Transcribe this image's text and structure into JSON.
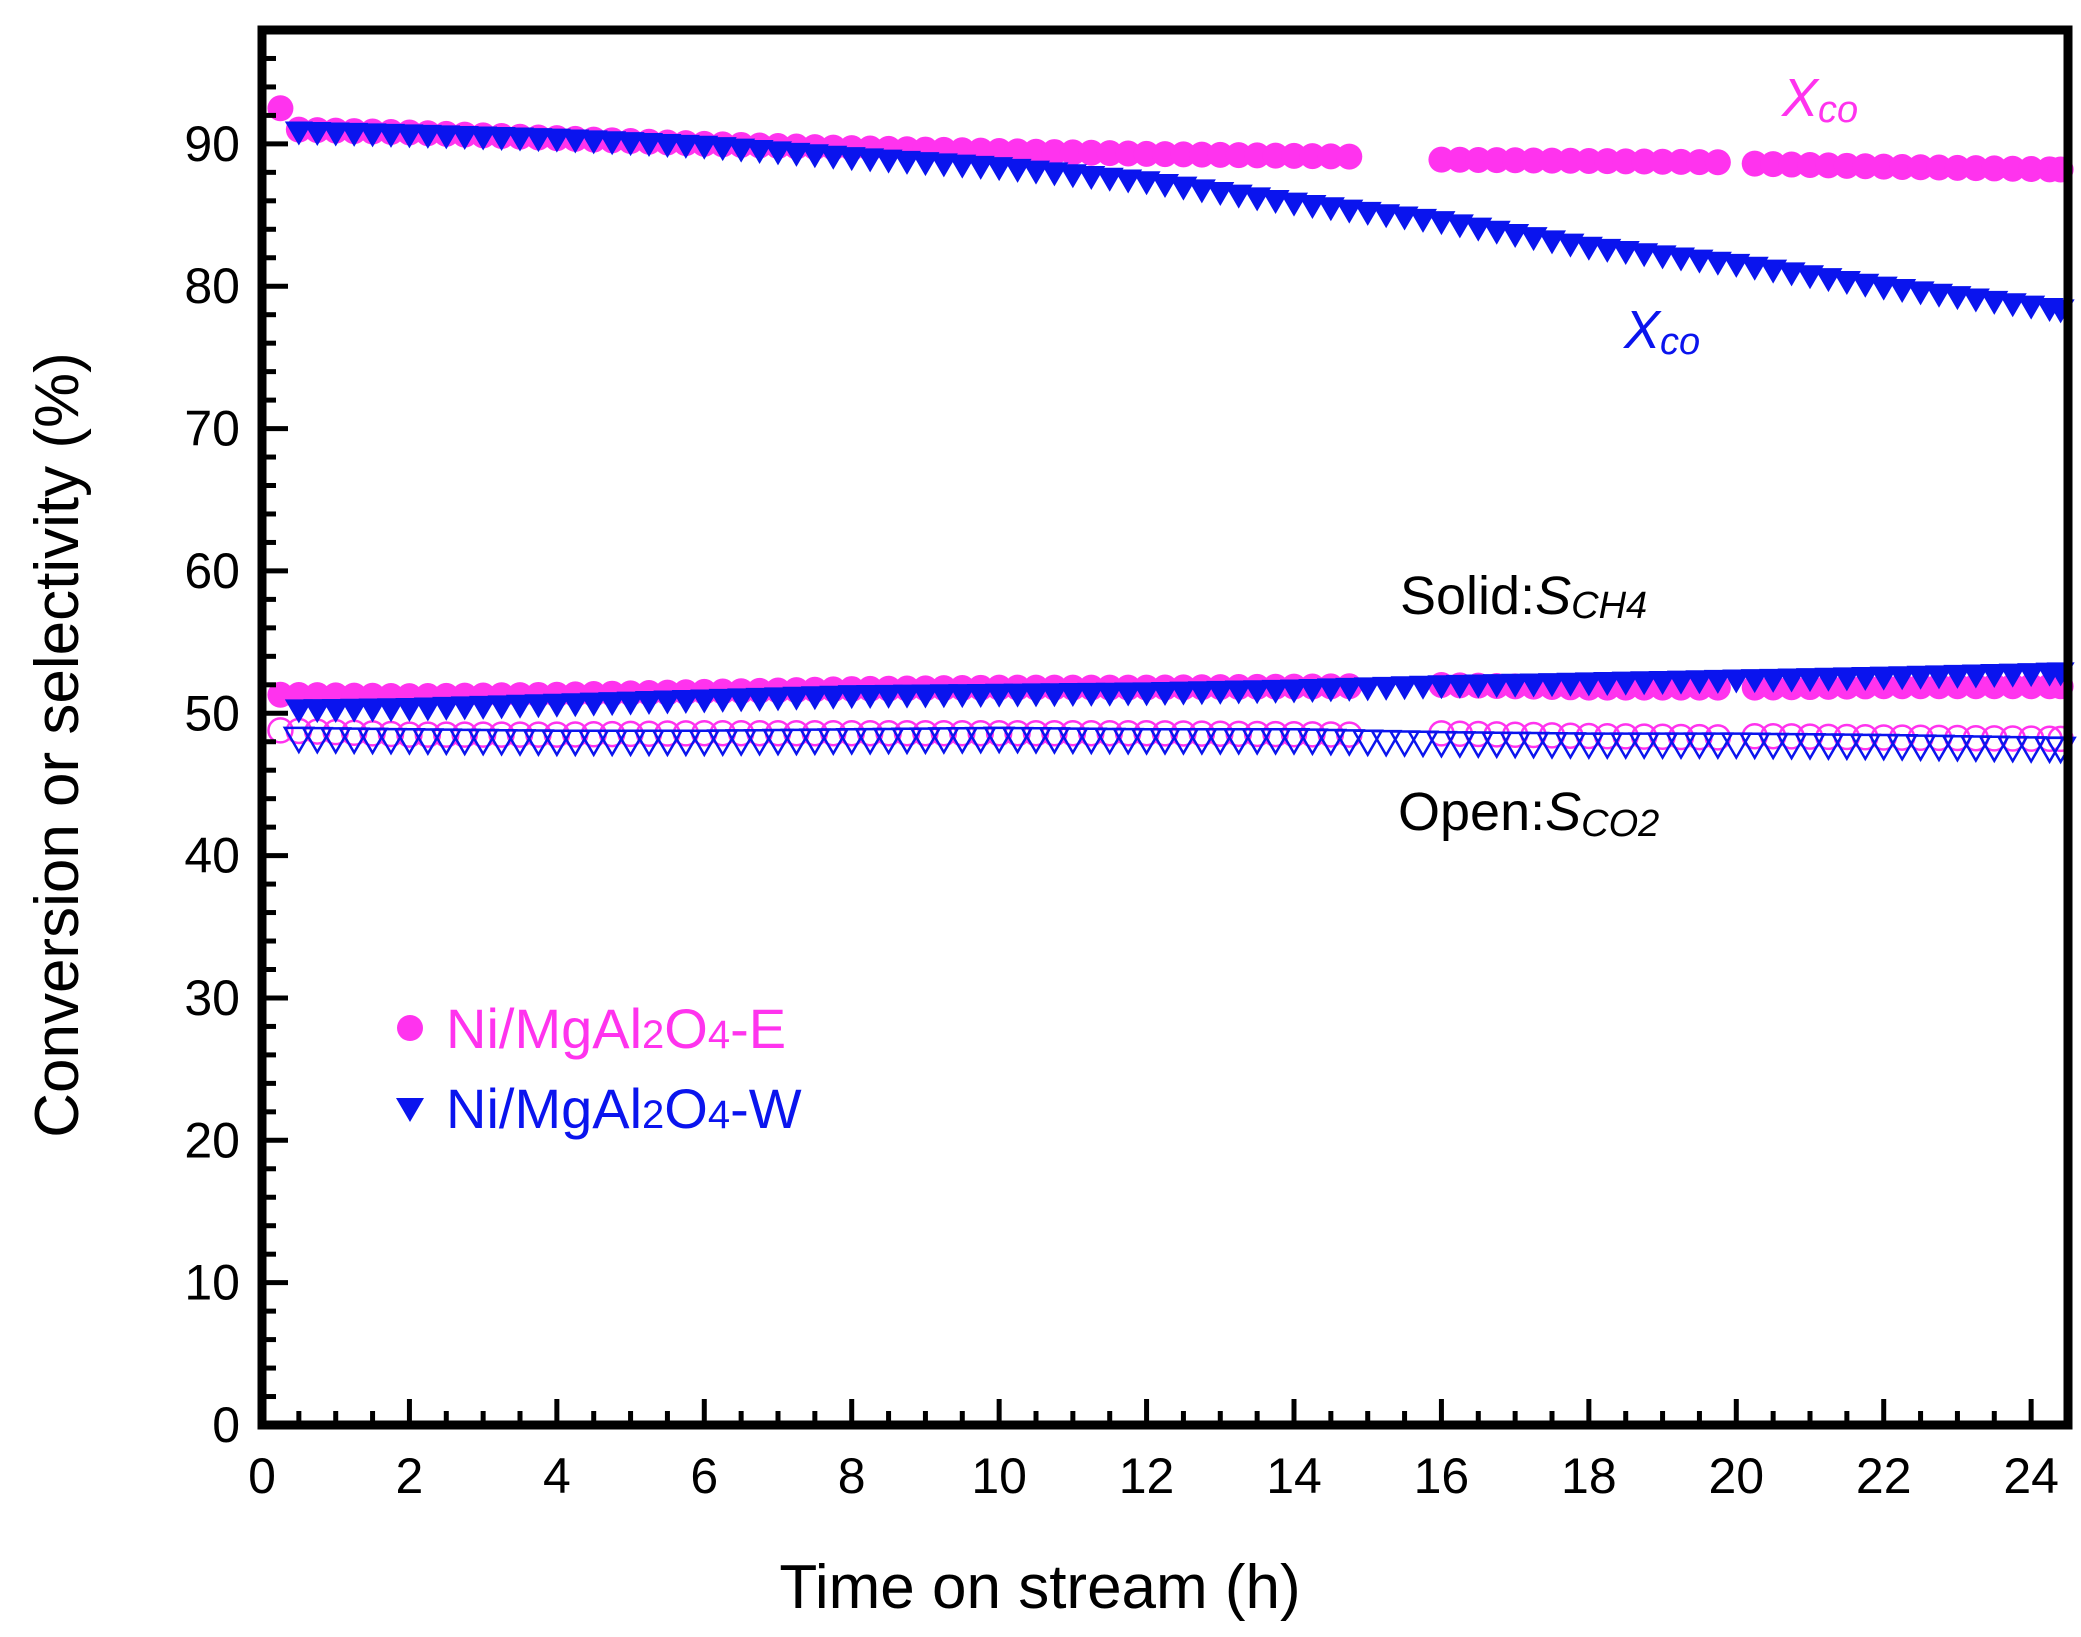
{
  "chart_data": {
    "type": "scatter",
    "xlabel": "Time on stream (h)",
    "ylabel": "Conversion or selectivity (%)",
    "xlim": [
      0,
      24.5
    ],
    "ylim": [
      0,
      98
    ],
    "xticks": [
      "0",
      "2",
      "4",
      "6",
      "8",
      "10",
      "12",
      "14",
      "16",
      "18",
      "20",
      "22",
      "24"
    ],
    "xtick_values": [
      0,
      2,
      4,
      6,
      8,
      10,
      12,
      14,
      16,
      18,
      20,
      22,
      24
    ],
    "yticks": [
      "0",
      "10",
      "20",
      "30",
      "40",
      "50",
      "60",
      "70",
      "80",
      "90"
    ],
    "ytick_values": [
      0,
      10,
      20,
      30,
      40,
      50,
      60,
      70,
      80,
      90
    ],
    "colors": {
      "E": "#ff33ee",
      "W": "#0a14ee",
      "axis": "#000000"
    },
    "legend": [
      {
        "pre": "Ni/MgAl",
        "sub1": "2",
        "mid": "O",
        "sub2": "4",
        "post": "-E",
        "color": "#ff33ee",
        "marker": "circle"
      },
      {
        "pre": "Ni/MgAl",
        "sub1": "2",
        "mid": "O",
        "sub2": "4",
        "post": "-W",
        "color": "#0a14ee",
        "marker": "triangle-down"
      }
    ],
    "annotations": {
      "xco_E": {
        "main": "X",
        "sub": "co",
        "color": "#ff33ee"
      },
      "xco_W": {
        "main": "X",
        "sub": "co",
        "color": "#0a14ee"
      },
      "solid": {
        "prefix": "Solid:",
        "main": "S",
        "sub": "CH4"
      },
      "open": {
        "prefix": "Open:",
        "main": "S",
        "sub": "CO2"
      }
    },
    "series": [
      {
        "name": "Ni/MgAl2O4-E XCO",
        "marker": "filled-circle",
        "color": "#ff33ee",
        "step": 0.25,
        "gaps": [
          [
            14.9,
            15.8
          ],
          [
            19.95,
            20.25
          ]
        ],
        "points": [
          [
            0.25,
            92.5
          ],
          [
            0.5,
            91.0
          ],
          [
            2,
            90.8
          ],
          [
            4,
            90.4
          ],
          [
            6,
            90.0
          ],
          [
            8,
            89.7
          ],
          [
            10,
            89.5
          ],
          [
            12,
            89.3
          ],
          [
            14.85,
            89.1
          ],
          [
            15.85,
            88.9
          ],
          [
            18,
            88.8
          ],
          [
            19.9,
            88.7
          ],
          [
            20.3,
            88.6
          ],
          [
            22,
            88.4
          ],
          [
            24.4,
            88.2
          ]
        ]
      },
      {
        "name": "Ni/MgAl2O4-W XCO",
        "marker": "filled-triangle-down",
        "color": "#0a14ee",
        "step": 0.25,
        "gaps": [],
        "points": [
          [
            0.5,
            90.8
          ],
          [
            2,
            90.6
          ],
          [
            4,
            90.3
          ],
          [
            6,
            89.8
          ],
          [
            8,
            89.0
          ],
          [
            10,
            88.3
          ],
          [
            12,
            87.3
          ],
          [
            14,
            85.8
          ],
          [
            16,
            84.5
          ],
          [
            18,
            82.7
          ],
          [
            20,
            81.5
          ],
          [
            22,
            79.9
          ],
          [
            24.4,
            78.3
          ]
        ]
      },
      {
        "name": "Ni/MgAl2O4-E SCH4",
        "marker": "filled-circle",
        "color": "#ff33ee",
        "step": 0.25,
        "gaps": [
          [
            14.9,
            15.8
          ],
          [
            19.95,
            20.25
          ]
        ],
        "points": [
          [
            0.25,
            51.3
          ],
          [
            2,
            51.2
          ],
          [
            4,
            51.3
          ],
          [
            6,
            51.5
          ],
          [
            8,
            51.7
          ],
          [
            10,
            51.8
          ],
          [
            12,
            51.8
          ],
          [
            14.85,
            51.9
          ],
          [
            15.85,
            52.0
          ],
          [
            18,
            51.8
          ],
          [
            19.9,
            51.8
          ],
          [
            20.3,
            51.8
          ],
          [
            22,
            51.9
          ],
          [
            24.4,
            51.9
          ]
        ]
      },
      {
        "name": "Ni/MgAl2O4-W SCH4",
        "marker": "filled-triangle-down",
        "color": "#0a14ee",
        "step": 0.25,
        "gaps": [],
        "points": [
          [
            0.5,
            50.2
          ],
          [
            2,
            50.3
          ],
          [
            4,
            50.6
          ],
          [
            6,
            50.9
          ],
          [
            8,
            51.2
          ],
          [
            10,
            51.3
          ],
          [
            12,
            51.4
          ],
          [
            14,
            51.6
          ],
          [
            16,
            51.9
          ],
          [
            18,
            52.1
          ],
          [
            20,
            52.3
          ],
          [
            22,
            52.5
          ],
          [
            24.4,
            52.8
          ]
        ]
      },
      {
        "name": "Ni/MgAl2O4-E SCO2",
        "marker": "open-circle",
        "color": "#ff33ee",
        "step": 0.25,
        "gaps": [
          [
            14.9,
            15.8
          ],
          [
            19.95,
            20.25
          ]
        ],
        "points": [
          [
            0.25,
            48.8
          ],
          [
            2,
            48.5
          ],
          [
            4,
            48.5
          ],
          [
            6,
            48.6
          ],
          [
            8,
            48.6
          ],
          [
            10,
            48.6
          ],
          [
            12,
            48.6
          ],
          [
            14.85,
            48.5
          ],
          [
            15.85,
            48.6
          ],
          [
            18,
            48.4
          ],
          [
            19.9,
            48.3
          ],
          [
            20.3,
            48.4
          ],
          [
            22,
            48.3
          ],
          [
            24.4,
            48.2
          ]
        ]
      },
      {
        "name": "Ni/MgAl2O4-W SCO2",
        "marker": "open-triangle-down",
        "color": "#0a14ee",
        "step": 0.25,
        "gaps": [],
        "points": [
          [
            0.5,
            48.2
          ],
          [
            2,
            48.1
          ],
          [
            4,
            48.0
          ],
          [
            6,
            48.0
          ],
          [
            8,
            48.1
          ],
          [
            10,
            48.2
          ],
          [
            12,
            48.1
          ],
          [
            14,
            48.1
          ],
          [
            16,
            47.9
          ],
          [
            18,
            47.8
          ],
          [
            20,
            47.8
          ],
          [
            22,
            47.7
          ],
          [
            24.4,
            47.5
          ]
        ]
      }
    ]
  }
}
